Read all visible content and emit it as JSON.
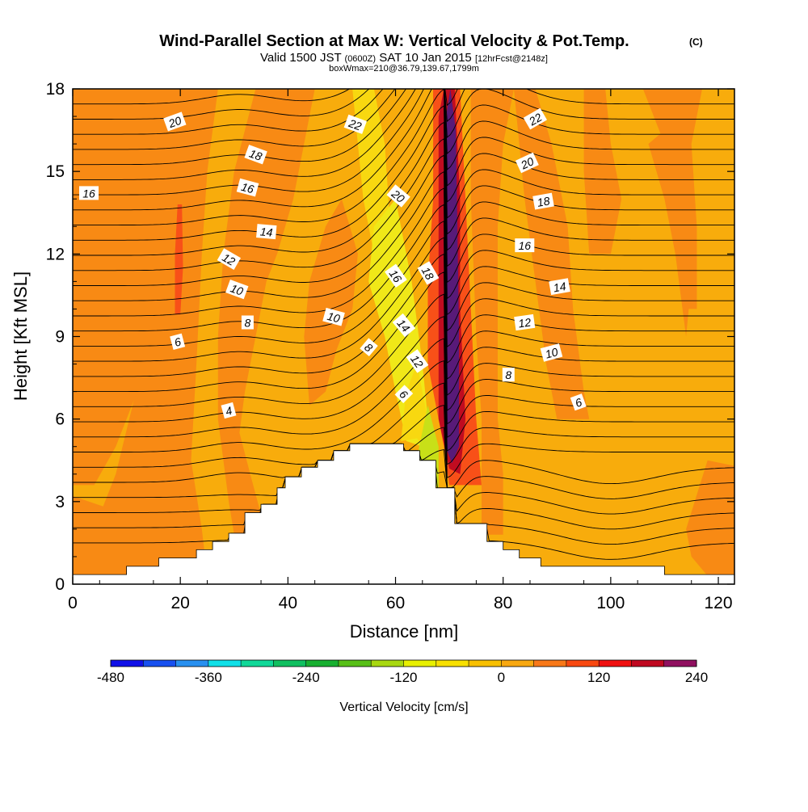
{
  "title": {
    "main": "Wind-Parallel Section at Max W: Vertical Velocity & Pot.Temp.",
    "copyright": "(C)",
    "valid": "Valid 1500 JST",
    "valid_utc": "(0600Z)",
    "valid_date": "SAT 10 Jan 2015",
    "forecast": "[12hrFcst@2148z]",
    "box": "boxWmax=210@36.79,139.67,1799m"
  },
  "chart_data": {
    "type": "contour",
    "xlabel": "Distance [nm]",
    "ylabel": "Height [Kft MSL]",
    "xlim": [
      0,
      123
    ],
    "ylim": [
      0,
      18
    ],
    "xticks": [
      0,
      20,
      40,
      60,
      80,
      100,
      120
    ],
    "yticks": [
      0,
      3,
      6,
      9,
      12,
      15,
      18
    ],
    "fill_variable": "Vertical Velocity [cm/s]",
    "colorbar": {
      "label": "Vertical Velocity [cm/s]",
      "min": -480,
      "max": 240,
      "step": 40,
      "tick_labels": [
        "-480",
        "-360",
        "-240",
        "-120",
        "0",
        "120",
        "240"
      ],
      "colors": [
        "#1010e8",
        "#1850f0",
        "#2890f0",
        "#10e0e8",
        "#10d898",
        "#10c060",
        "#18b030",
        "#58c018",
        "#a8d810",
        "#e8f000",
        "#f8e000",
        "#f8c000",
        "#f8a810",
        "#f87818",
        "#f84810",
        "#f01010",
        "#c00820",
        "#901060"
      ]
    },
    "terrain_profile": {
      "x": [
        0,
        10,
        10,
        16,
        16,
        23,
        23,
        26,
        26,
        29,
        29,
        32,
        32,
        35,
        35,
        38,
        38,
        39.5,
        39.5,
        42.5,
        42.5,
        45.5,
        45.5,
        48.5,
        48.5,
        51.5,
        51.5,
        61.5,
        61.5,
        64.5,
        64.5,
        67.5,
        67.5,
        71,
        71,
        77,
        77,
        80,
        80,
        83,
        83,
        87,
        87,
        110,
        110,
        123
      ],
      "y": [
        0.35,
        0.35,
        0.65,
        0.65,
        0.95,
        0.95,
        1.25,
        1.25,
        1.55,
        1.55,
        1.85,
        1.85,
        2.6,
        2.6,
        2.9,
        2.9,
        3.5,
        3.5,
        3.9,
        3.9,
        4.25,
        4.25,
        4.5,
        4.5,
        4.85,
        4.85,
        5.1,
        5.1,
        4.85,
        4.85,
        4.5,
        4.5,
        3.5,
        3.5,
        2.2,
        2.2,
        1.55,
        1.55,
        1.25,
        1.25,
        0.95,
        0.95,
        0.65,
        0.65,
        0.35,
        0.35
      ]
    },
    "theta_contour_labels": [
      {
        "text": "20",
        "x": 19,
        "y": 16.8,
        "rot": -20
      },
      {
        "text": "22",
        "x": 52.5,
        "y": 16.7,
        "rot": 20
      },
      {
        "text": "22",
        "x": 86,
        "y": 16.9,
        "rot": -30
      },
      {
        "text": "18",
        "x": 34,
        "y": 15.6,
        "rot": 20
      },
      {
        "text": "20",
        "x": 84.5,
        "y": 15.3,
        "rot": -25
      },
      {
        "text": "16",
        "x": 3,
        "y": 14.2,
        "rot": 0
      },
      {
        "text": "16",
        "x": 32.5,
        "y": 14.4,
        "rot": 15
      },
      {
        "text": "20",
        "x": 60.5,
        "y": 14.1,
        "rot": 40
      },
      {
        "text": "18",
        "x": 87.5,
        "y": 13.9,
        "rot": -10
      },
      {
        "text": "14",
        "x": 36,
        "y": 12.8,
        "rot": 5
      },
      {
        "text": "16",
        "x": 84,
        "y": 12.3,
        "rot": 0
      },
      {
        "text": "12",
        "x": 29,
        "y": 11.8,
        "rot": 30
      },
      {
        "text": "16",
        "x": 60,
        "y": 11.2,
        "rot": 55
      },
      {
        "text": "18",
        "x": 66,
        "y": 11.3,
        "rot": 60
      },
      {
        "text": "10",
        "x": 30.5,
        "y": 10.7,
        "rot": 20
      },
      {
        "text": "14",
        "x": 90.5,
        "y": 10.8,
        "rot": -10
      },
      {
        "text": "10",
        "x": 48.5,
        "y": 9.7,
        "rot": 15
      },
      {
        "text": "8",
        "x": 32.5,
        "y": 9.5,
        "rot": 0
      },
      {
        "text": "12",
        "x": 84,
        "y": 9.5,
        "rot": -8
      },
      {
        "text": "14",
        "x": 61.5,
        "y": 9.4,
        "rot": 50
      },
      {
        "text": "6",
        "x": 19.5,
        "y": 8.8,
        "rot": -15
      },
      {
        "text": "8",
        "x": 55,
        "y": 8.6,
        "rot": 40
      },
      {
        "text": "10",
        "x": 89,
        "y": 8.4,
        "rot": -15
      },
      {
        "text": "12",
        "x": 64,
        "y": 8.1,
        "rot": 55
      },
      {
        "text": "8",
        "x": 81,
        "y": 7.6,
        "rot": 0
      },
      {
        "text": "6",
        "x": 61.5,
        "y": 6.9,
        "rot": 45
      },
      {
        "text": "6",
        "x": 94,
        "y": 6.6,
        "rot": -20
      },
      {
        "text": "4",
        "x": 29,
        "y": 6.3,
        "rot": -15
      }
    ]
  }
}
